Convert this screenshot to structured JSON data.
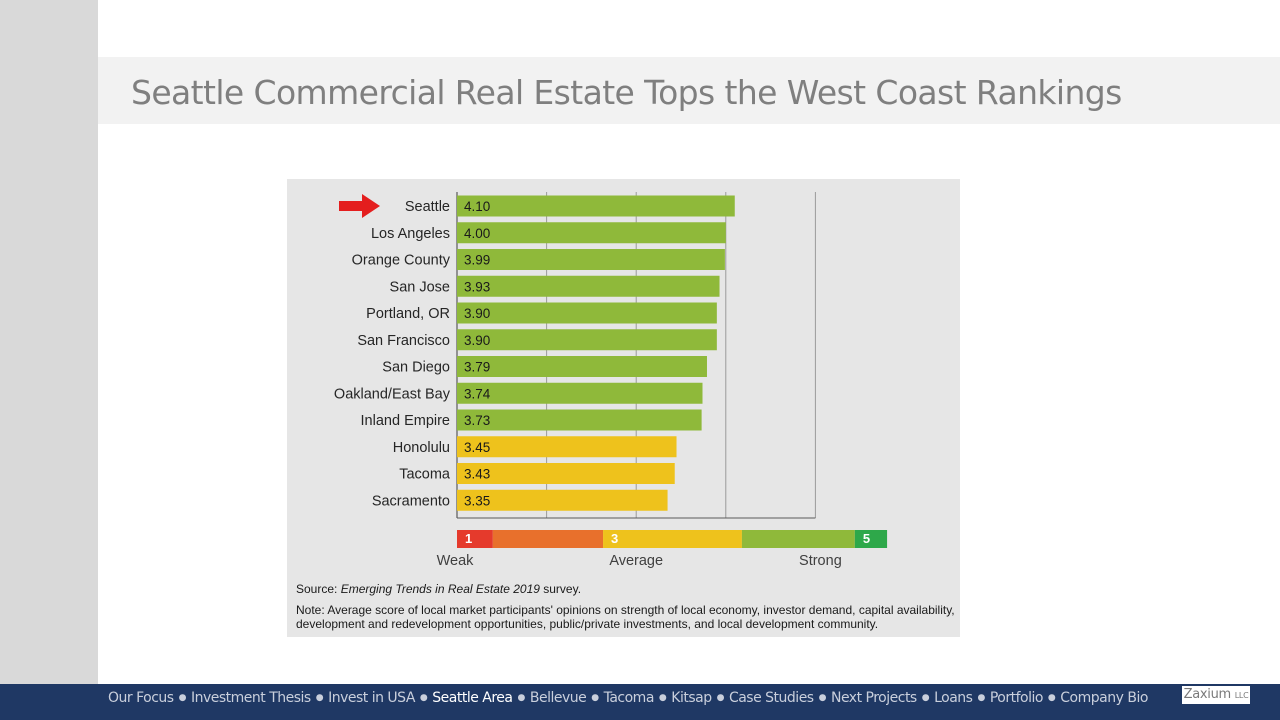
{
  "slide": {
    "title": "Seattle Commercial Real Estate Tops the West Coast Rankings"
  },
  "chart_data": {
    "type": "bar",
    "orientation": "horizontal",
    "categories": [
      "Seattle",
      "Los Angeles",
      "Orange County",
      "San Jose",
      "Portland, OR",
      "San Francisco",
      "San Diego",
      "Oakland/East Bay",
      "Inland Empire",
      "Honolulu",
      "Tacoma",
      "Sacramento"
    ],
    "values": [
      4.1,
      4.0,
      3.99,
      3.93,
      3.9,
      3.9,
      3.79,
      3.74,
      3.73,
      3.45,
      3.43,
      3.35
    ],
    "value_labels": [
      "4.10",
      "4.00",
      "3.99",
      "3.93",
      "3.90",
      "3.90",
      "3.79",
      "3.74",
      "3.73",
      "3.45",
      "3.43",
      "3.35"
    ],
    "bar_colors": [
      "#8fb93a",
      "#8fb93a",
      "#8fb93a",
      "#8fb93a",
      "#8fb93a",
      "#8fb93a",
      "#8fb93a",
      "#8fb93a",
      "#8fb93a",
      "#eec21c",
      "#eec21c",
      "#eec21c"
    ],
    "xlim": [
      1,
      5.8
    ],
    "grid": true,
    "highlight": "Seattle",
    "scale": {
      "segments": [
        {
          "from": 1,
          "to": 1.4,
          "color": "#e53a2c",
          "label": "1"
        },
        {
          "from": 1.4,
          "to": 2.63,
          "color": "#e8702c",
          "label": ""
        },
        {
          "from": 2.63,
          "to": 4.18,
          "color": "#eec21c",
          "label": "3"
        },
        {
          "from": 4.18,
          "to": 5.44,
          "color": "#8fb93a",
          "label": ""
        },
        {
          "from": 5.44,
          "to": 5.8,
          "color": "#2ea84a",
          "label": "5"
        }
      ],
      "captions": [
        {
          "text": "Weak",
          "at": 1
        },
        {
          "text": "Average",
          "at": 3
        },
        {
          "text": "Strong",
          "at": 5
        }
      ]
    },
    "source_prefix": "Source: ",
    "source_title": "Emerging Trends in Real Estate 2019",
    "source_suffix": " survey.",
    "note": "Note: Average score of local market participants' opinions on strength of local economy, investor demand, capital availability, development and redevelopment opportunities, public/private investments, and local development community."
  },
  "nav": {
    "items": [
      "Our Focus",
      "Investment Thesis",
      "Invest in USA",
      "Seattle Area",
      "Bellevue",
      "Tacoma",
      "Kitsap",
      "Case Studies",
      "Next Projects",
      "Loans",
      "Portfolio",
      "Company Bio"
    ],
    "active": "Seattle Area",
    "separator": "●"
  },
  "brand": {
    "name": "Zaxium",
    "suffix": "LLC"
  },
  "colors": {
    "nav_background": "#1f3864",
    "title_text": "#7f7f7f",
    "arrow": "#e41e1e"
  }
}
